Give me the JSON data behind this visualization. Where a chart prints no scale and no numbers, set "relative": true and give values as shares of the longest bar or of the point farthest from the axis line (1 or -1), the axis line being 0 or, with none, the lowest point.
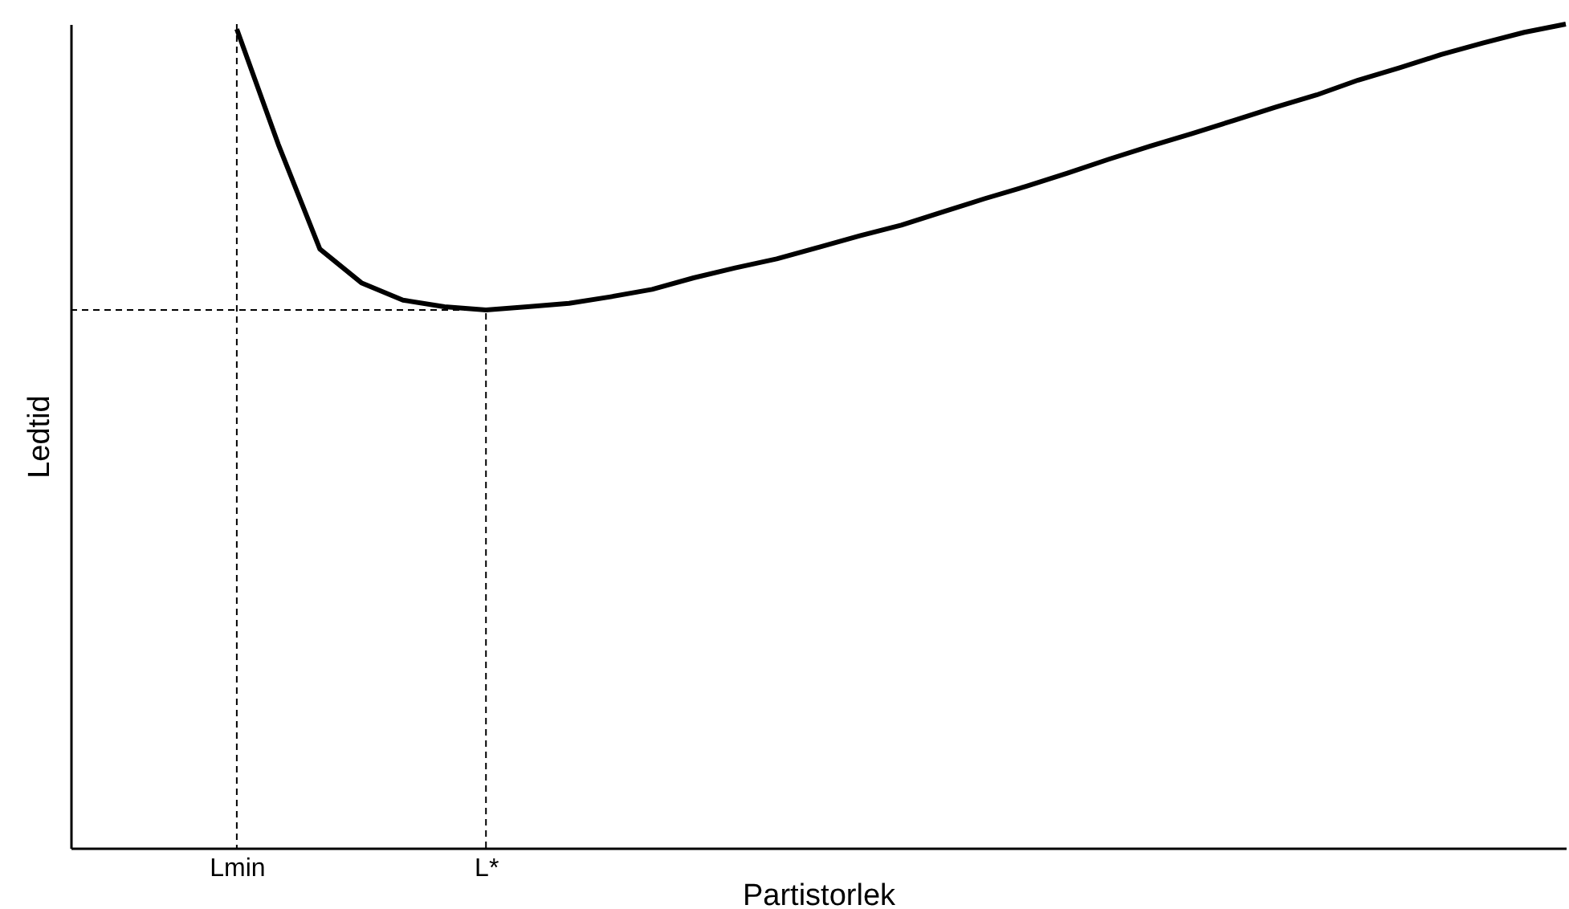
{
  "chart_data": {
    "type": "line",
    "relative": true,
    "xlabel": "Partistorlek",
    "ylabel": "Ledtid",
    "categories": [
      null,
      null,
      null,
      null,
      "Lmin",
      null,
      null,
      null,
      null,
      null,
      "L*",
      null,
      null,
      null,
      null,
      null,
      null,
      null,
      null,
      null,
      null,
      null,
      null,
      null,
      null,
      null,
      null,
      null,
      null,
      null,
      null,
      null,
      null,
      null,
      null,
      null,
      null
    ],
    "grid": false,
    "marker": "none",
    "series": [
      {
        "color": "#000000",
        "line_style": "solid",
        "values": [
          null,
          null,
          null,
          null,
          0.994,
          0.854,
          0.727,
          0.686,
          0.665,
          0.657,
          0.653,
          0.657,
          0.661,
          0.669,
          0.678,
          0.692,
          0.704,
          0.715,
          0.729,
          0.743,
          0.756,
          0.772,
          0.788,
          0.803,
          0.819,
          0.836,
          0.852,
          0.867,
          0.883,
          0.899,
          0.914,
          0.932,
          0.947,
          0.963,
          0.977,
          0.99,
          1
        ]
      },
      {
        "color": "#000000",
        "line_style": "dashed",
        "values": [
          0.653,
          0.653,
          0.653,
          0.653,
          0.653,
          0.653,
          0.653,
          0.653,
          0.653,
          0.653,
          0.653,
          null,
          null,
          null,
          null,
          null,
          null,
          null,
          null,
          null,
          null,
          null,
          null,
          null,
          null,
          null,
          null,
          null,
          null,
          null,
          null,
          null,
          null,
          null,
          null,
          null,
          null
        ]
      },
      {
        "color": "#000000",
        "line_style": "dashed",
        "x": [
          "L*",
          "L*"
        ],
        "values": [
          0,
          0.653
        ]
      }
    ],
    "ref_lines": [
      {
        "axis": "x",
        "value": "Lmin",
        "color": "#000000",
        "line_style": "dashed"
      }
    ]
  }
}
